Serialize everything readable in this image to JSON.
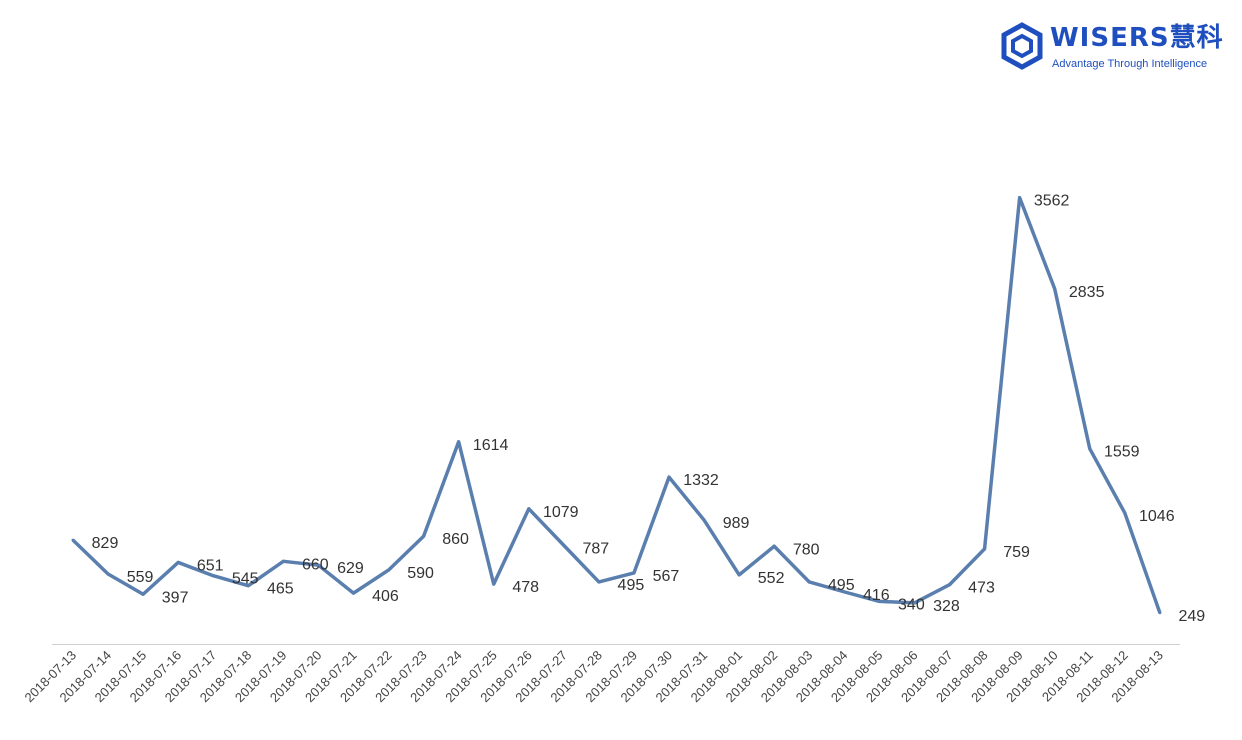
{
  "logo": {
    "brand": "WISERS慧科",
    "tagline": "Advantage Through Intelligence",
    "color": "#1f4fbf"
  },
  "chart_data": {
    "type": "line",
    "title": "",
    "xlabel": "",
    "ylabel": "",
    "ylim": [
      0,
      3700
    ],
    "grid": false,
    "line_color": "#5a7fae",
    "categories": [
      "2018-07-13",
      "2018-07-14",
      "2018-07-15",
      "2018-07-16",
      "2018-07-17",
      "2018-07-18",
      "2018-07-19",
      "2018-07-20",
      "2018-07-21",
      "2018-07-22",
      "2018-07-23",
      "2018-07-24",
      "2018-07-25",
      "2018-07-26",
      "2018-07-27",
      "2018-07-28",
      "2018-07-29",
      "2018-07-30",
      "2018-07-31",
      "2018-08-01",
      "2018-08-02",
      "2018-08-03",
      "2018-08-04",
      "2018-08-05",
      "2018-08-06",
      "2018-08-07",
      "2018-08-08",
      "2018-08-09",
      "2018-08-10",
      "2018-08-11",
      "2018-08-12",
      "2018-08-13"
    ],
    "values": [
      829,
      559,
      397,
      651,
      545,
      465,
      660,
      629,
      406,
      590,
      860,
      1614,
      478,
      1079,
      787,
      495,
      567,
      1332,
      989,
      552,
      780,
      495,
      416,
      340,
      328,
      473,
      759,
      3562,
      2835,
      1559,
      1046,
      249
    ]
  }
}
